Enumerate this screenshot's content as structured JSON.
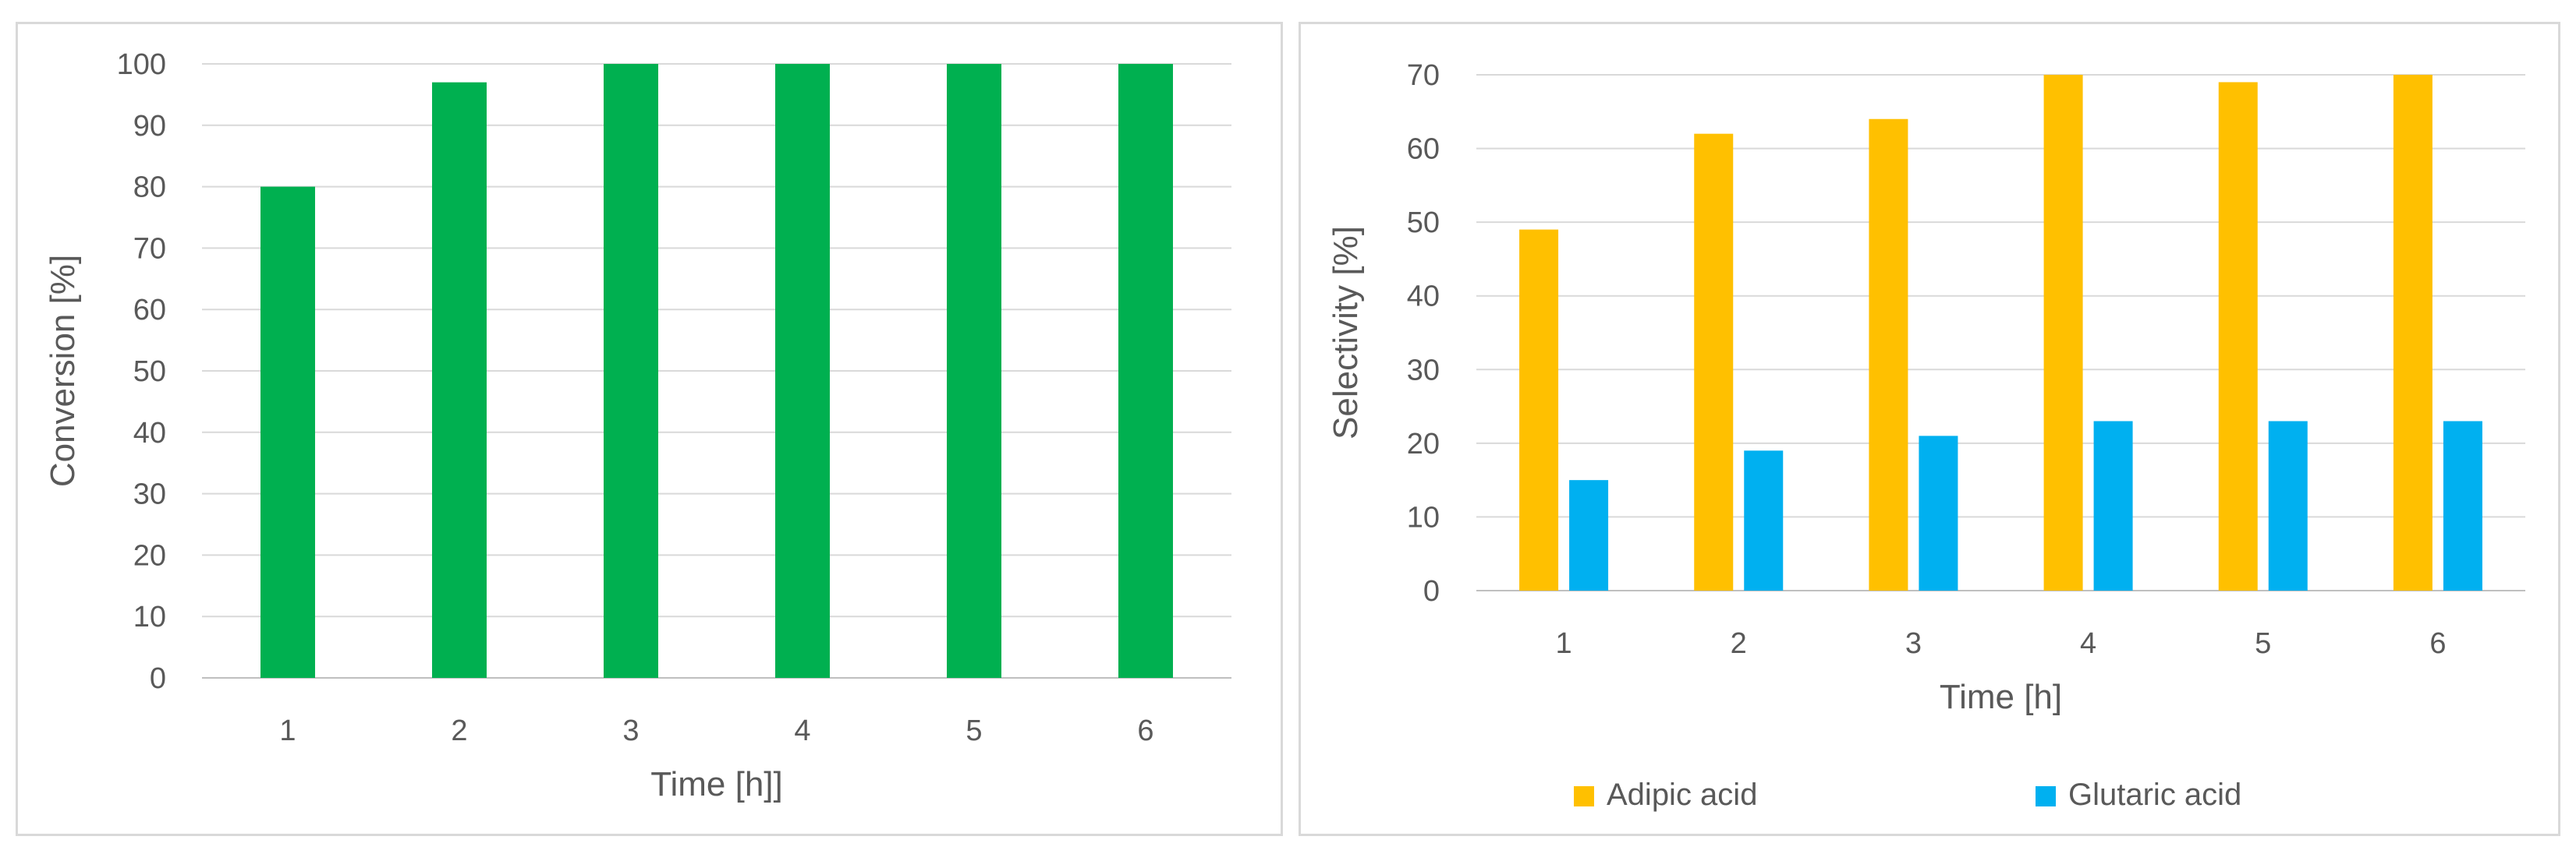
{
  "chart_data": [
    {
      "type": "bar",
      "categories": [
        "1",
        "2",
        "3",
        "4",
        "5",
        "6"
      ],
      "series": [
        {
          "values": [
            80,
            97,
            100,
            100,
            100,
            100
          ],
          "color": "#00b050"
        }
      ],
      "xlabel": "Time [h]]",
      "ylabel": "Conversion [%]",
      "ylim": [
        0,
        100
      ],
      "yticks": [
        "0",
        "10",
        "20",
        "30",
        "40",
        "50",
        "60",
        "70",
        "80",
        "90",
        "100"
      ],
      "grid": true,
      "legend": null
    },
    {
      "type": "bar",
      "categories": [
        "1",
        "2",
        "3",
        "4",
        "5",
        "6"
      ],
      "series": [
        {
          "name": "Adipic acid",
          "values": [
            49,
            62,
            64,
            70,
            69,
            70
          ],
          "color": "#ffc000"
        },
        {
          "name": "Glutaric acid",
          "values": [
            15,
            19,
            21,
            23,
            23,
            23
          ],
          "color": "#00b0f0"
        }
      ],
      "xlabel": "Time [h]",
      "ylabel": "Selectivity [%]",
      "ylim": [
        0,
        70
      ],
      "yticks": [
        "0",
        "10",
        "20",
        "30",
        "40",
        "50",
        "60",
        "70"
      ],
      "grid": true,
      "legend": "bottom"
    }
  ]
}
